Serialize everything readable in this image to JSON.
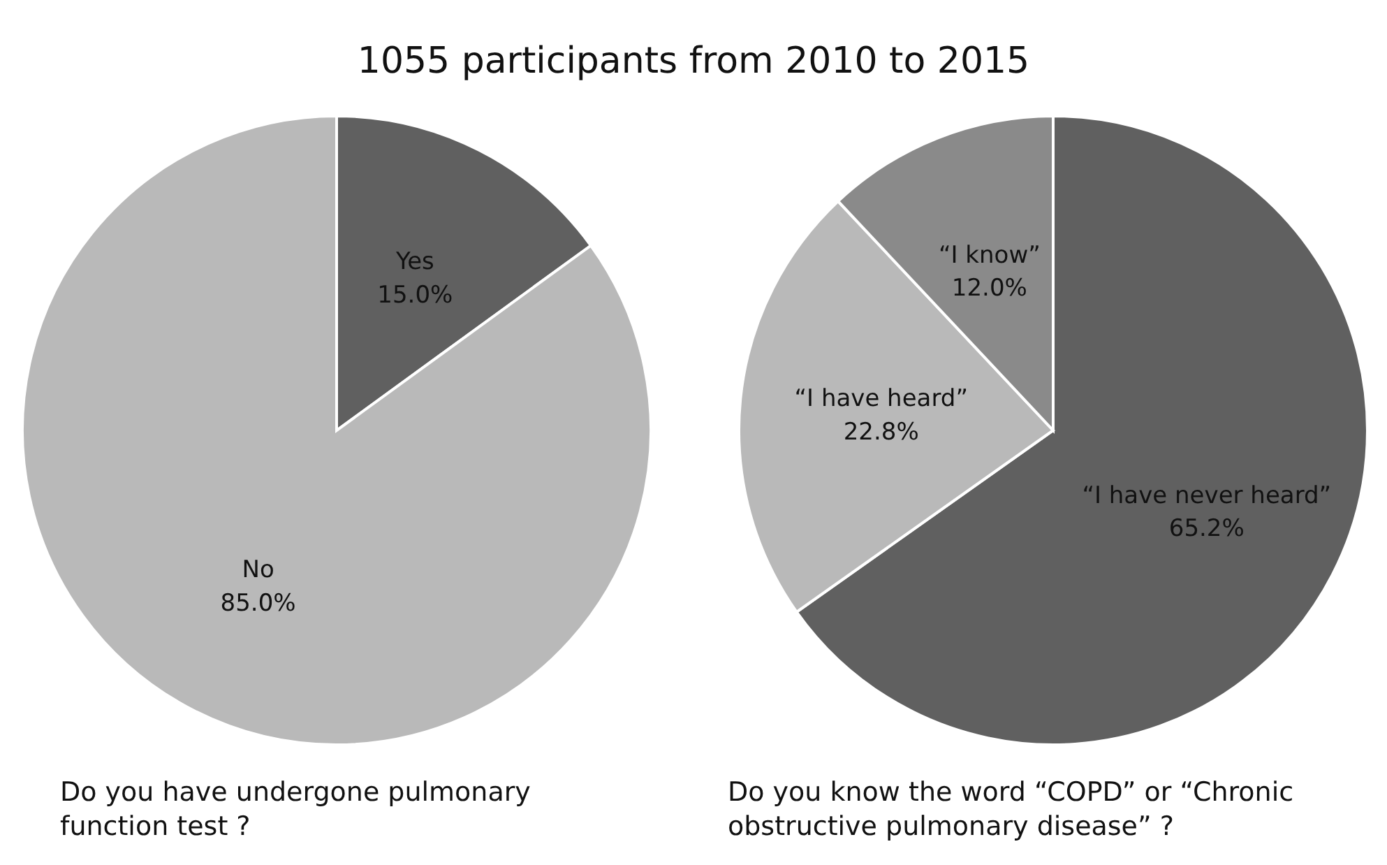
{
  "chart_data": [
    {
      "type": "pie",
      "title": "1055 participants from 2010 to 2015",
      "xlabel": "Do you have undergone pulmonary function test ?",
      "categories": [
        "Yes",
        "No"
      ],
      "values": [
        15.0,
        85.0
      ],
      "colors": [
        "#606060",
        "#b9b9b9"
      ],
      "value_labels": [
        "15.0%",
        "85.0%"
      ],
      "legend": false
    },
    {
      "type": "pie",
      "xlabel": "Do you know the word “COPD” or “Chronic obstructive pulmonary disease” ?",
      "categories": [
        "“I have never heard”",
        "“I have heard”",
        "“I know”"
      ],
      "values": [
        65.2,
        22.8,
        12.0
      ],
      "colors": [
        "#606060",
        "#b9b9b9",
        "#8a8a8a"
      ],
      "value_labels": [
        "65.2%",
        "22.8%",
        "12.0%"
      ],
      "legend": false
    }
  ]
}
